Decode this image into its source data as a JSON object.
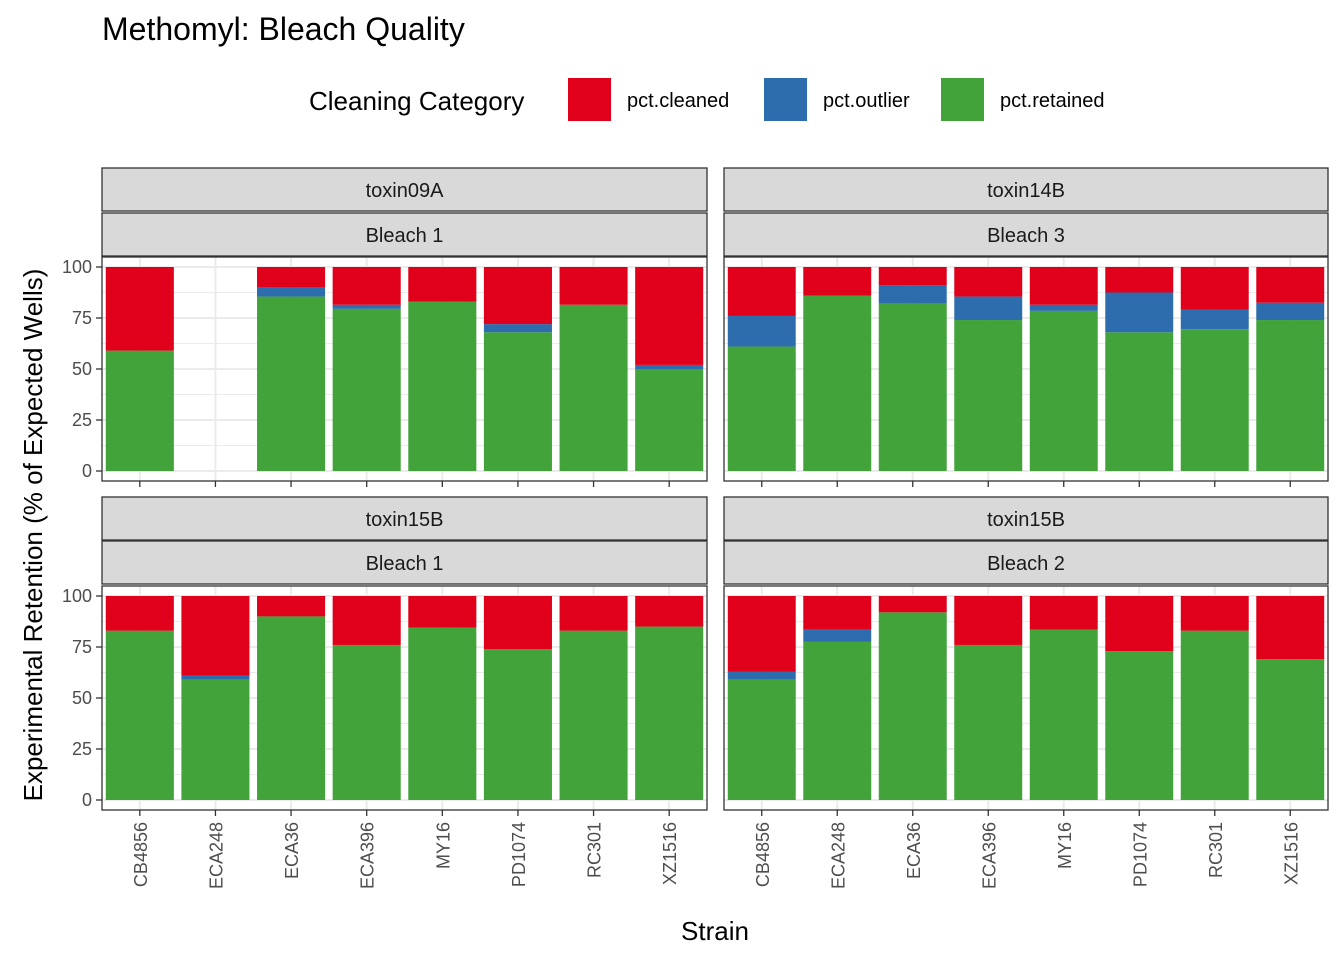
{
  "colors": {
    "pct_cleaned": "#E0001B",
    "pct_outlier": "#2D6CAD",
    "pct_retained": "#42A33A",
    "strip_fill": "#D9D9D9",
    "grid": "#EBEBEB",
    "panel_border": "#333333"
  },
  "chart_data": {
    "type": "bar",
    "stacked": true,
    "title": "Methomyl: Bleach Quality",
    "xlabel": "Strain",
    "ylabel": "Experimental Retention (% of Expected Wells)",
    "ylim": [
      0,
      100
    ],
    "yticks": [
      "0",
      "25",
      "50",
      "75",
      "100"
    ],
    "legend": {
      "title": "Cleaning Category",
      "position": "top",
      "entries": [
        "pct.cleaned",
        "pct.outlier",
        "pct.retained"
      ]
    },
    "categories": [
      "CB4856",
      "ECA248",
      "ECA36",
      "ECA396",
      "MY16",
      "PD1074",
      "RC301",
      "XZ1516"
    ],
    "panels": [
      {
        "strip_top": "toxin09A",
        "strip_bottom": "Bleach 1",
        "series": [
          {
            "name": "pct.retained",
            "values": [
              59,
              null,
              85.5,
              79.5,
              83,
              68,
              81.5,
              50
            ]
          },
          {
            "name": "pct.outlier",
            "values": [
              0,
              null,
              4.5,
              2,
              0,
              4,
              0,
              2
            ]
          },
          {
            "name": "pct.cleaned",
            "values": [
              41,
              null,
              10,
              18.5,
              17,
              28,
              18.5,
              48
            ]
          }
        ]
      },
      {
        "strip_top": "toxin14B",
        "strip_bottom": "Bleach 3",
        "series": [
          {
            "name": "pct.retained",
            "values": [
              61,
              86,
              82,
              74,
              78.5,
              68,
              69.5,
              74
            ]
          },
          {
            "name": "pct.outlier",
            "values": [
              15,
              0,
              9,
              11.5,
              3,
              19.5,
              9.5,
              8.5
            ]
          },
          {
            "name": "pct.cleaned",
            "values": [
              24,
              14,
              9,
              14.5,
              18.5,
              12.5,
              21,
              17.5
            ]
          }
        ]
      },
      {
        "strip_top": "toxin15B",
        "strip_bottom": "Bleach 1",
        "series": [
          {
            "name": "pct.retained",
            "values": [
              83,
              59,
              90,
              76,
              84.5,
              74,
              83,
              85
            ]
          },
          {
            "name": "pct.outlier",
            "values": [
              0,
              2,
              0,
              0,
              0,
              0,
              0,
              0
            ]
          },
          {
            "name": "pct.cleaned",
            "values": [
              17,
              39,
              10,
              24,
              15.5,
              26,
              17,
              15
            ]
          }
        ]
      },
      {
        "strip_top": "toxin15B",
        "strip_bottom": "Bleach 2",
        "series": [
          {
            "name": "pct.retained",
            "values": [
              59,
              77.5,
              92,
              76,
              83.5,
              73,
              83,
              69
            ]
          },
          {
            "name": "pct.outlier",
            "values": [
              4,
              6,
              0,
              0,
              0,
              0,
              0,
              0
            ]
          },
          {
            "name": "pct.cleaned",
            "values": [
              37,
              16.5,
              8,
              24,
              16.5,
              27,
              17,
              31
            ]
          }
        ]
      }
    ]
  }
}
